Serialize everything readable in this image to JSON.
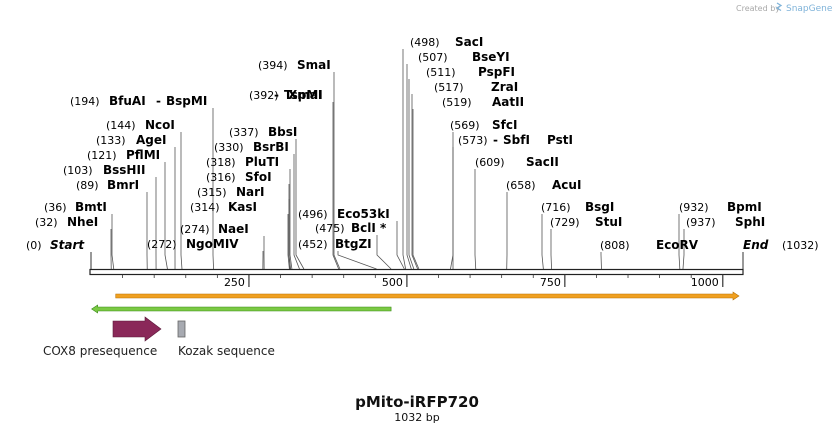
{
  "watermark": {
    "prefix": "Created by",
    "brand": "SnapGene"
  },
  "title": "pMito-iRFP720",
  "length_label": "1032 bp",
  "ruler": {
    "ticks": [
      250,
      500,
      750,
      1000
    ]
  },
  "legend": [
    {
      "label": "COX8 presequence",
      "color": "#8a2859"
    },
    {
      "label": "Kozak sequence",
      "color": "#a7aab1"
    }
  ],
  "chart_data": {
    "type": "linear-sequence-map",
    "total_length_bp": 1032,
    "title": "pMito-iRFP720",
    "subtitle": "1032 bp",
    "features": [
      {
        "name": "forward feature (orange arrow)",
        "start": 36,
        "end": 1032,
        "direction": "forward",
        "color": "#f0a020"
      },
      {
        "name": "reverse feature (green arrow)",
        "start": 1,
        "end": 475,
        "direction": "reverse",
        "color": "#7ac943"
      },
      {
        "name": "COX8 presequence",
        "color": "#8a2859"
      },
      {
        "name": "Kozak sequence",
        "color": "#a7aab1"
      }
    ],
    "sites": [
      {
        "pos": "(0)",
        "name": "Start",
        "bp": 0
      },
      {
        "pos": "(32)",
        "name": "NheI",
        "bp": 32
      },
      {
        "pos": "(36)",
        "name": "BmtI",
        "bp": 36
      },
      {
        "pos": "(89)",
        "name": "BmrI",
        "bp": 89
      },
      {
        "pos": "(103)",
        "name": "BssHII",
        "bp": 103
      },
      {
        "pos": "(121)",
        "name": "PflMI",
        "bp": 121
      },
      {
        "pos": "(133)",
        "name": "AgeI",
        "bp": 133
      },
      {
        "pos": "(144)",
        "name": "NcoI",
        "bp": 144
      },
      {
        "pos": "(194)",
        "name": "BfuAI",
        "name2": "BspMI",
        "bp": 194
      },
      {
        "pos": "(272)",
        "name": "NgoMIV",
        "bp": 272
      },
      {
        "pos": "(274)",
        "name": "NaeI",
        "bp": 274
      },
      {
        "pos": "(314)",
        "name": "KasI",
        "bp": 314
      },
      {
        "pos": "(315)",
        "name": "NarI",
        "bp": 315
      },
      {
        "pos": "(316)",
        "name": "SfoI",
        "bp": 316
      },
      {
        "pos": "(318)",
        "name": "PluTI",
        "bp": 318
      },
      {
        "pos": "(330)",
        "name": "BsrBI",
        "bp": 330
      },
      {
        "pos": "(337)",
        "name": "BbsI",
        "bp": 337
      },
      {
        "pos": "(392)",
        "name": "XmaI",
        "name2": "TspMI",
        "bp": 392
      },
      {
        "pos": "(394)",
        "name": "SmaI",
        "bp": 394
      },
      {
        "pos": "(452)",
        "name": "BtgZI",
        "bp": 452
      },
      {
        "pos": "(475)",
        "name": "BclI *",
        "bp": 475
      },
      {
        "pos": "(496)",
        "name": "Eco53kI",
        "bp": 496
      },
      {
        "pos": "(498)",
        "name": "SacI",
        "bp": 498
      },
      {
        "pos": "(507)",
        "name": "BseYI",
        "bp": 507
      },
      {
        "pos": "(511)",
        "name": "PspFI",
        "bp": 511
      },
      {
        "pos": "(517)",
        "name": "ZraI",
        "bp": 517
      },
      {
        "pos": "(519)",
        "name": "AatII",
        "bp": 519
      },
      {
        "pos": "(569)",
        "name": "SfcI",
        "bp": 569
      },
      {
        "pos": "(573)",
        "name": "PstI",
        "name2": "SbfI",
        "bp": 573
      },
      {
        "pos": "(609)",
        "name": "SacII",
        "bp": 609
      },
      {
        "pos": "(658)",
        "name": "AcuI",
        "bp": 658
      },
      {
        "pos": "(716)",
        "name": "BsgI",
        "bp": 716
      },
      {
        "pos": "(729)",
        "name": "StuI",
        "bp": 729
      },
      {
        "pos": "(808)",
        "name": "EcoRV",
        "bp": 808
      },
      {
        "pos": "(932)",
        "name": "BpmI",
        "bp": 932
      },
      {
        "pos": "(937)",
        "name": "SphI",
        "bp": 937
      },
      {
        "pos": "(1032)",
        "name": "End",
        "bp": 1032
      }
    ]
  }
}
